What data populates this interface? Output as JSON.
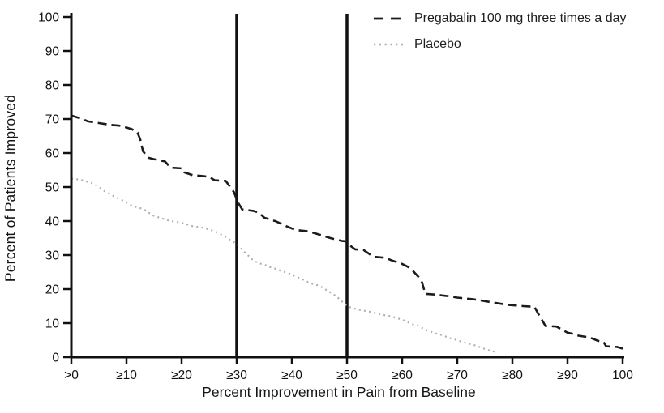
{
  "chart_data": {
    "type": "line",
    "title": "",
    "xlabel": "Percent Improvement in Pain from Baseline",
    "ylabel": "Percent of Patients Improved",
    "xlim": [
      0,
      100
    ],
    "ylim": [
      0,
      100
    ],
    "grid": false,
    "legend_position": "top-right",
    "axis_color": "#111111",
    "x_tick_positions": [
      0,
      10,
      20,
      30,
      40,
      50,
      60,
      70,
      80,
      90,
      100
    ],
    "x_tick_labels": [
      ">0",
      "≥10",
      "≥20",
      "≥30",
      "≥40",
      "≥50",
      "≥60",
      "≥70",
      "≥80",
      "≥90",
      "100"
    ],
    "y_tick_positions": [
      0,
      10,
      20,
      30,
      40,
      50,
      60,
      70,
      80,
      90,
      100
    ],
    "y_tick_labels": [
      "0",
      "10",
      "20",
      "30",
      "40",
      "50",
      "60",
      "70",
      "80",
      "90",
      "100"
    ],
    "reference_lines": [
      30,
      50
    ],
    "series": [
      {
        "name": "Pregabalin 100 mg three times a day",
        "line_style": "dashed",
        "color": "#1c1c1c",
        "points": [
          [
            0,
            71
          ],
          [
            1,
            70.5
          ],
          [
            2,
            70
          ],
          [
            3,
            69.3
          ],
          [
            5,
            68.8
          ],
          [
            7,
            68.3
          ],
          [
            9,
            68
          ],
          [
            10,
            67.5
          ],
          [
            11,
            67
          ],
          [
            12,
            66
          ],
          [
            12.5,
            64
          ],
          [
            13,
            60.5
          ],
          [
            14,
            58.6
          ],
          [
            15,
            58.2
          ],
          [
            17,
            57.5
          ],
          [
            18,
            55.7
          ],
          [
            20,
            55.5
          ],
          [
            20.5,
            54.3
          ],
          [
            22,
            53.5
          ],
          [
            24,
            53.2
          ],
          [
            25,
            53
          ],
          [
            26,
            52
          ],
          [
            28,
            51.8
          ],
          [
            29.5,
            48.5
          ],
          [
            30.2,
            45.5
          ],
          [
            31,
            43.4
          ],
          [
            33,
            43
          ],
          [
            34,
            42.5
          ],
          [
            35,
            41
          ],
          [
            36.5,
            40.2
          ],
          [
            37,
            40
          ],
          [
            39,
            38.5
          ],
          [
            40.5,
            37.5
          ],
          [
            41,
            37.3
          ],
          [
            43,
            37
          ],
          [
            45,
            36
          ],
          [
            47,
            35
          ],
          [
            49,
            34.2
          ],
          [
            50,
            34
          ],
          [
            50.8,
            32.5
          ],
          [
            51.5,
            31.7
          ],
          [
            53,
            31.5
          ],
          [
            54.5,
            29.8
          ],
          [
            55,
            29.5
          ],
          [
            57,
            29.2
          ],
          [
            58,
            28.5
          ],
          [
            60,
            27.4
          ],
          [
            61.5,
            26.2
          ],
          [
            63,
            23.5
          ],
          [
            63.6,
            22
          ],
          [
            64.2,
            18.6
          ],
          [
            66,
            18.4
          ],
          [
            68,
            18
          ],
          [
            70,
            17.5
          ],
          [
            73,
            17
          ],
          [
            76,
            16.2
          ],
          [
            79,
            15.4
          ],
          [
            82,
            15
          ],
          [
            84,
            14.8
          ],
          [
            84.6,
            13
          ],
          [
            86,
            9.2
          ],
          [
            88,
            9
          ],
          [
            90,
            7.2
          ],
          [
            90.6,
            7
          ],
          [
            92,
            6.3
          ],
          [
            94,
            5.8
          ],
          [
            95.5,
            4.8
          ],
          [
            96.5,
            4.6
          ],
          [
            97,
            3.2
          ],
          [
            98,
            3.1
          ],
          [
            99,
            3
          ],
          [
            100,
            2.5
          ]
        ]
      },
      {
        "name": "Placebo",
        "line_style": "dotted",
        "color": "#b0b0b0",
        "points": [
          [
            0,
            52.5
          ],
          [
            1,
            52.3
          ],
          [
            2,
            52
          ],
          [
            3,
            51.5
          ],
          [
            4,
            51
          ],
          [
            5,
            50
          ],
          [
            6,
            48.8
          ],
          [
            7,
            48
          ],
          [
            8,
            47
          ],
          [
            9,
            46.3
          ],
          [
            10,
            45.5
          ],
          [
            11,
            44.5
          ],
          [
            12,
            44
          ],
          [
            13,
            43.6
          ],
          [
            14,
            42.5
          ],
          [
            15,
            41.5
          ],
          [
            16,
            41
          ],
          [
            17,
            40.5
          ],
          [
            18,
            40
          ],
          [
            19,
            39.8
          ],
          [
            20,
            39.5
          ],
          [
            22,
            38.5
          ],
          [
            24,
            38
          ],
          [
            26,
            37
          ],
          [
            27,
            36.2
          ],
          [
            28,
            35.3
          ],
          [
            29,
            34.2
          ],
          [
            30,
            33.4
          ],
          [
            31,
            31.5
          ],
          [
            32,
            30
          ],
          [
            33,
            28.4
          ],
          [
            34,
            27.6
          ],
          [
            35,
            27.2
          ],
          [
            36,
            26.5
          ],
          [
            37,
            26
          ],
          [
            38,
            25.4
          ],
          [
            40,
            24.3
          ],
          [
            41,
            23.5
          ],
          [
            42,
            22.8
          ],
          [
            43,
            22
          ],
          [
            44,
            21.4
          ],
          [
            45,
            21
          ],
          [
            46,
            20
          ],
          [
            47,
            19
          ],
          [
            48,
            18
          ],
          [
            49,
            16.5
          ],
          [
            50,
            15
          ],
          [
            51,
            14.4
          ],
          [
            52,
            14
          ],
          [
            54,
            13.4
          ],
          [
            56,
            12.6
          ],
          [
            58,
            12
          ],
          [
            60,
            11
          ],
          [
            61,
            10.3
          ],
          [
            62,
            9.6
          ],
          [
            63,
            9.2
          ],
          [
            64,
            8.2
          ],
          [
            65,
            7.6
          ],
          [
            66,
            7
          ],
          [
            67,
            6.6
          ],
          [
            68,
            6
          ],
          [
            69,
            5.4
          ],
          [
            70,
            5
          ],
          [
            71,
            4.4
          ],
          [
            72,
            4
          ],
          [
            73,
            3.6
          ],
          [
            74,
            3
          ],
          [
            75,
            2.4
          ],
          [
            76,
            1.9
          ],
          [
            77,
            1.5
          ]
        ]
      }
    ]
  }
}
